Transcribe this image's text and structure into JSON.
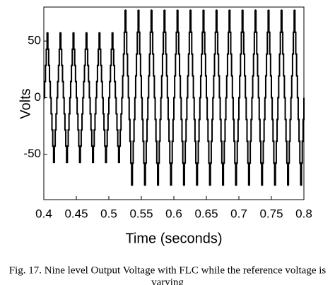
{
  "chart_data": {
    "type": "line",
    "xlabel": "Time (seconds)",
    "ylabel": "Volts",
    "caption": [
      "Fig. 17. Nine level Output Voltage with FLC while the reference voltage is",
      "varying"
    ],
    "xlim": [
      0.4,
      0.8
    ],
    "ylim": [
      -90,
      80
    ],
    "xticks": [
      0.4,
      0.45,
      0.5,
      0.55,
      0.6,
      0.65,
      0.7,
      0.75,
      0.8
    ],
    "yticks": [
      -50,
      0,
      50
    ],
    "step": true,
    "x": [
      0.4,
      0.40125,
      0.4025,
      0.40375,
      0.405,
      0.40625,
      0.4075,
      0.40875,
      0.41,
      0.41125,
      0.4125,
      0.41375,
      0.415,
      0.41625,
      0.4175,
      0.41875,
      0.42,
      0.42125,
      0.4225,
      0.42375,
      0.425,
      0.42625,
      0.4275,
      0.42875,
      0.43,
      0.43125,
      0.4325,
      0.43375,
      0.435,
      0.43625,
      0.4375,
      0.43875,
      0.44,
      0.44125,
      0.4425,
      0.44375,
      0.445,
      0.44625,
      0.4475,
      0.44875,
      0.45,
      0.45125,
      0.4525,
      0.45375,
      0.455,
      0.45625,
      0.4575,
      0.45875,
      0.46,
      0.46125,
      0.4625,
      0.46375,
      0.465,
      0.46625,
      0.4675,
      0.46875,
      0.47,
      0.47125,
      0.4725,
      0.47375,
      0.475,
      0.47625,
      0.4775,
      0.47875,
      0.48,
      0.48125,
      0.4825,
      0.48375,
      0.485,
      0.48625,
      0.4875,
      0.48875,
      0.49,
      0.49125,
      0.4925,
      0.49375,
      0.495,
      0.49625,
      0.4975,
      0.49875,
      0.5,
      0.50125,
      0.5025,
      0.50375,
      0.505,
      0.50625,
      0.5075,
      0.50875,
      0.51,
      0.51125,
      0.5125,
      0.51375,
      0.515,
      0.51625,
      0.5175,
      0.51875,
      0.52,
      0.52125,
      0.5225,
      0.52375,
      0.525,
      0.52625,
      0.5275,
      0.52875,
      0.53,
      0.53125,
      0.5325,
      0.53375,
      0.535,
      0.53625,
      0.5375,
      0.53875,
      0.54,
      0.54125,
      0.5425,
      0.54375,
      0.545,
      0.54625,
      0.5475,
      0.54875,
      0.55,
      0.55125,
      0.5525,
      0.55375,
      0.555,
      0.55625,
      0.5575,
      0.55875,
      0.56,
      0.56125,
      0.5625,
      0.56375,
      0.565,
      0.56625,
      0.5675,
      0.56875,
      0.57,
      0.57125,
      0.5725,
      0.57375,
      0.575,
      0.57625,
      0.5775,
      0.57875,
      0.58,
      0.58125,
      0.5825,
      0.58375,
      0.585,
      0.58625,
      0.5875,
      0.58875,
      0.59,
      0.59125,
      0.5925,
      0.59375,
      0.595,
      0.59625,
      0.5975,
      0.59875,
      0.6,
      0.60125,
      0.6025,
      0.60375,
      0.605,
      0.60625,
      0.6075,
      0.60875,
      0.61,
      0.61125,
      0.6125,
      0.61375,
      0.615,
      0.61625,
      0.6175,
      0.61875,
      0.62,
      0.62125,
      0.6225,
      0.62375,
      0.625,
      0.62625,
      0.6275,
      0.62875,
      0.63,
      0.63125,
      0.6325,
      0.63375,
      0.635,
      0.63625,
      0.6375,
      0.63875,
      0.64,
      0.64125,
      0.6425,
      0.64375,
      0.645,
      0.64625,
      0.6475,
      0.64875,
      0.65,
      0.65125,
      0.6525,
      0.65375,
      0.655,
      0.65625,
      0.6575,
      0.65875,
      0.66,
      0.66125,
      0.6625,
      0.66375,
      0.665,
      0.66625,
      0.6675,
      0.66875,
      0.67,
      0.67125,
      0.6725,
      0.67375,
      0.675,
      0.67625,
      0.6775,
      0.67875,
      0.68,
      0.68125,
      0.6825,
      0.68375,
      0.685,
      0.68625,
      0.6875,
      0.68875,
      0.69,
      0.69125,
      0.6925,
      0.69375,
      0.695,
      0.69625,
      0.6975,
      0.69875,
      0.7,
      0.70125,
      0.7025,
      0.70375,
      0.705,
      0.70625,
      0.7075,
      0.70875,
      0.71,
      0.71125,
      0.7125,
      0.71375,
      0.715,
      0.71625,
      0.7175,
      0.71875,
      0.72,
      0.72125,
      0.7225,
      0.72375,
      0.725,
      0.72625,
      0.7275,
      0.72875,
      0.73,
      0.73125,
      0.7325,
      0.73375,
      0.735,
      0.73625,
      0.7375,
      0.73875,
      0.74,
      0.74125,
      0.7425,
      0.74375,
      0.745,
      0.74625,
      0.7475,
      0.74875,
      0.75,
      0.75125,
      0.7525,
      0.75375,
      0.755,
      0.75625,
      0.7575,
      0.75875,
      0.76,
      0.76125,
      0.7625,
      0.76375,
      0.765,
      0.76625,
      0.7675,
      0.76875,
      0.77,
      0.77125,
      0.7725,
      0.77375,
      0.775,
      0.77625,
      0.7775,
      0.77875,
      0.78,
      0.78125,
      0.7825,
      0.78375,
      0.785,
      0.78625,
      0.7875,
      0.78875,
      0.79,
      0.79125,
      0.7925,
      0.79375,
      0.795,
      0.79625,
      0.7975,
      0.79875,
      0.8
    ],
    "series": [
      {
        "color": "#000000",
        "values": [
          0,
          14.25,
          28.5,
          42.75,
          57,
          42.75,
          28.5,
          14.25,
          0,
          -14.25,
          -28.5,
          -42.75,
          -57,
          -42.75,
          -28.5,
          -14.25,
          0,
          14.25,
          28.5,
          42.75,
          57,
          42.75,
          28.5,
          14.25,
          0,
          -14.25,
          -28.5,
          -42.75,
          -57,
          -42.75,
          -28.5,
          -14.25,
          0,
          14.25,
          28.5,
          42.75,
          57,
          42.75,
          28.5,
          14.25,
          0,
          -14.25,
          -28.5,
          -42.75,
          -57,
          -42.75,
          -28.5,
          -14.25,
          0,
          14.25,
          28.5,
          42.75,
          57,
          42.75,
          28.5,
          14.25,
          0,
          -14.25,
          -28.5,
          -42.75,
          -57,
          -42.75,
          -28.5,
          -14.25,
          0,
          14.25,
          28.5,
          42.75,
          57,
          42.75,
          28.5,
          14.25,
          0,
          -14.25,
          -28.5,
          -42.75,
          -57,
          -42.75,
          -28.5,
          -14.25,
          0,
          14.25,
          28.5,
          42.75,
          57,
          42.75,
          28.5,
          14.25,
          0,
          -14.25,
          -28.5,
          -42.75,
          -57,
          -42.75,
          -28.5,
          -14.25,
          0,
          19.25,
          38.5,
          57.75,
          77,
          57.75,
          38.5,
          19.25,
          0,
          -19.25,
          -38.5,
          -57.75,
          -77,
          -57.75,
          -38.5,
          -19.25,
          0,
          19.25,
          38.5,
          57.75,
          77,
          57.75,
          38.5,
          19.25,
          0,
          -19.25,
          -38.5,
          -57.75,
          -77,
          -57.75,
          -38.5,
          -19.25,
          0,
          19.25,
          38.5,
          57.75,
          77,
          57.75,
          38.5,
          19.25,
          0,
          -19.25,
          -38.5,
          -57.75,
          -77,
          -57.75,
          -38.5,
          -19.25,
          0,
          19.25,
          38.5,
          57.75,
          77,
          57.75,
          38.5,
          19.25,
          0,
          -19.25,
          -38.5,
          -57.75,
          -77,
          -57.75,
          -38.5,
          -19.25,
          0,
          19.25,
          38.5,
          57.75,
          77,
          57.75,
          38.5,
          19.25,
          0,
          -19.25,
          -38.5,
          -57.75,
          -77,
          -57.75,
          -38.5,
          -19.25,
          0,
          19.25,
          38.5,
          57.75,
          77,
          57.75,
          38.5,
          19.25,
          0,
          -19.25,
          -38.5,
          -57.75,
          -77,
          -57.75,
          -38.5,
          -19.25,
          0,
          19.25,
          38.5,
          57.75,
          77,
          57.75,
          38.5,
          19.25,
          0,
          -19.25,
          -38.5,
          -57.75,
          -77,
          -57.75,
          -38.5,
          -19.25,
          0,
          19.25,
          38.5,
          57.75,
          77,
          57.75,
          38.5,
          19.25,
          0,
          -19.25,
          -38.5,
          -57.75,
          -77,
          -57.75,
          -38.5,
          -19.25,
          0,
          19.25,
          38.5,
          57.75,
          77,
          57.75,
          38.5,
          19.25,
          0,
          -19.25,
          -38.5,
          -57.75,
          -77,
          -57.75,
          -38.5,
          -19.25,
          0,
          19.25,
          38.5,
          57.75,
          77,
          57.75,
          38.5,
          19.25,
          0,
          -19.25,
          -38.5,
          -57.75,
          -77,
          -57.75,
          -38.5,
          -19.25,
          0,
          19.25,
          38.5,
          57.75,
          77,
          57.75,
          38.5,
          19.25,
          0,
          -19.25,
          -38.5,
          -57.75,
          -77,
          -57.75,
          -38.5,
          -19.25,
          0,
          19.25,
          38.5,
          57.75,
          77,
          57.75,
          38.5,
          19.25,
          0,
          -19.25,
          -38.5,
          -57.75,
          -77,
          -57.75,
          -38.5,
          -19.25,
          0,
          19.25,
          38.5,
          57.75,
          77,
          57.75,
          38.5,
          19.25,
          0,
          -19.25,
          -38.5,
          -57.75,
          -77,
          -57.75,
          -38.5,
          -19.25,
          0,
          19.25,
          38.5,
          57.75,
          77,
          57.75,
          38.5,
          19.25,
          0,
          -19.25,
          -38.5,
          -57.75,
          -77,
          -57.75,
          -38.5,
          -19.25,
          0
        ]
      }
    ]
  }
}
